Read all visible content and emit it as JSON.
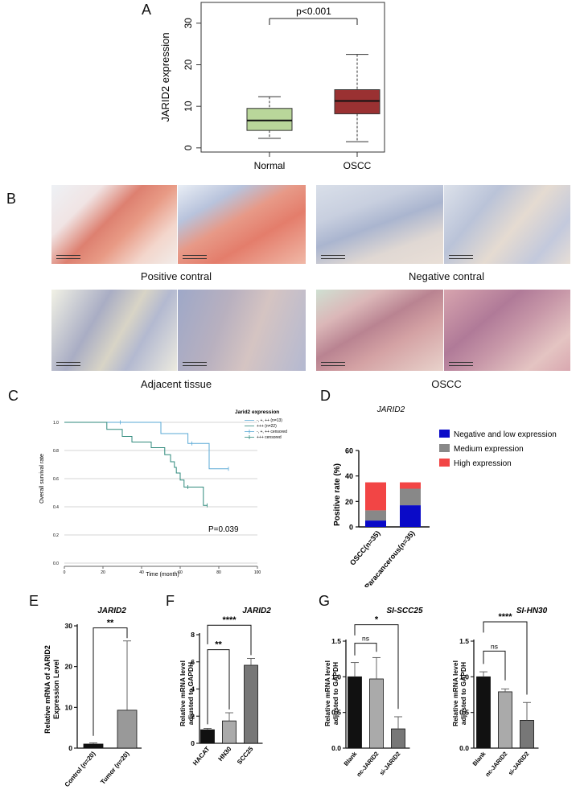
{
  "panel_labels": {
    "A": "A",
    "B": "B",
    "C": "C",
    "D": "D",
    "E": "E",
    "F": "F",
    "G": "G"
  },
  "panel_a": {
    "ylabel": "JARID2 expression",
    "pvalue": "p<0.001",
    "yticks": [
      "0",
      "10",
      "20",
      "30"
    ],
    "groups": [
      {
        "name": "Normal",
        "min": 2.3,
        "q1": 4.2,
        "median": 6.6,
        "q3": 9.5,
        "max": 12.3,
        "color": "#b9d69a"
      },
      {
        "name": "OSCC",
        "min": 1.5,
        "q1": 8.2,
        "median": 11.3,
        "q3": 14.0,
        "max": 22.5,
        "color": "#9a3132"
      }
    ],
    "ylim": [
      -1,
      35
    ]
  },
  "panel_b": {
    "captions": [
      "Positive contral",
      "Negative contral",
      "Adjacent tissue",
      "OSCC"
    ]
  },
  "panel_c": {
    "legend_title": "Jarid2  expression",
    "legend_items": [
      "-, +, ++ (n=13)",
      "+++  (n=22)",
      "-, +, ++ censored",
      "+++ censored"
    ],
    "ylabel": "Overall survival rate",
    "xlabel": "Time (month)",
    "pvalue": "P=0.039",
    "xticks": [
      "0",
      "20",
      "40",
      "60",
      "80",
      "100"
    ],
    "yticks": [
      "0.0",
      "0.2",
      "0.4",
      "0.6",
      "0.8",
      "1.0"
    ],
    "colors": [
      "#5aa9d6",
      "#2f8a7c"
    ]
  },
  "panel_d": {
    "title": "JARID2",
    "ylabel": "Positive rate (%)",
    "yticks": [
      "0",
      "20",
      "40",
      "60"
    ],
    "categories": [
      "OSCC(n=35)",
      "Paracancerous(n=35)"
    ],
    "series": [
      {
        "name": "Negative and low expression",
        "color": "#0a0ac8",
        "values": [
          5,
          17
        ]
      },
      {
        "name": "Medium expression",
        "color": "#888888",
        "values": [
          8,
          13
        ]
      },
      {
        "name": "High expression",
        "color": "#f24545",
        "values": [
          22,
          5
        ]
      }
    ],
    "ylim": [
      0,
      60
    ]
  },
  "panel_e": {
    "title": "JARID2",
    "ylabel": "Relative mRNA of JARID2",
    "ylabel2": "Expression Level",
    "yticks": [
      "0",
      "10",
      "20",
      "30"
    ],
    "categories": [
      "Control (n=20)",
      "Tumor (n=20)"
    ],
    "values": [
      1.0,
      9.3
    ],
    "errors": [
      0.3,
      17.0
    ],
    "colors": [
      "#111111",
      "#999999"
    ],
    "sig": "**",
    "ylim": [
      0,
      30
    ]
  },
  "panel_f": {
    "title": "JARID2",
    "ylabel": "Relative mRNA level",
    "ylabel2": "adjusted to GAPDH",
    "yticks": [
      "0",
      "2",
      "4",
      "6",
      "8"
    ],
    "categories": [
      "HACAT",
      "HN30",
      "SCC25"
    ],
    "values": [
      1.0,
      1.65,
      5.75
    ],
    "errors": [
      0.1,
      0.6,
      0.5
    ],
    "colors": [
      "#111111",
      "#aaaaaa",
      "#777777"
    ],
    "sig": [
      "**",
      "****"
    ],
    "ylim": [
      0,
      8
    ]
  },
  "panel_g1": {
    "title": "SI-SCC25",
    "ylabel": "Relative mRNA level",
    "ylabel2": "adjusted to GAPDH",
    "yticks": [
      "0.0",
      "0.5",
      "1.0",
      "1.5"
    ],
    "categories": [
      "Blank",
      "nc-JARID2",
      "si-JARID2"
    ],
    "values": [
      1.0,
      0.97,
      0.27
    ],
    "errors": [
      0.2,
      0.3,
      0.17
    ],
    "colors": [
      "#111111",
      "#aaaaaa",
      "#777777"
    ],
    "sig": [
      "ns",
      "*"
    ],
    "ylim": [
      0,
      1.5
    ]
  },
  "panel_g2": {
    "title": "SI-HN30",
    "ylabel": "Relative mRNA level",
    "ylabel2": "adjusted to GAPDH",
    "yticks": [
      "0.0",
      "0.5",
      "1.0",
      "1.5"
    ],
    "categories": [
      "Blank",
      "nc-JARID2",
      "si-JARID2"
    ],
    "values": [
      1.0,
      0.79,
      0.39
    ],
    "errors": [
      0.07,
      0.04,
      0.25
    ],
    "colors": [
      "#111111",
      "#aaaaaa",
      "#777777"
    ],
    "sig": [
      "ns",
      "****"
    ],
    "ylim": [
      0,
      1.5
    ]
  },
  "chart_data": [
    {
      "type": "box",
      "title": "",
      "ylabel": "JARID2 expression",
      "categories": [
        "Normal",
        "OSCC"
      ],
      "boxes": [
        {
          "min": 2.3,
          "q1": 4.2,
          "median": 6.6,
          "q3": 9.5,
          "max": 12.3
        },
        {
          "min": 1.5,
          "q1": 8.2,
          "median": 11.3,
          "q3": 14.0,
          "max": 22.5
        }
      ],
      "annotation": "p<0.001",
      "ylim": [
        0,
        30
      ]
    },
    {
      "type": "line",
      "title": "",
      "xlabel": "Time (month)",
      "ylabel": "Overall survival rate",
      "annotation": "P=0.039",
      "series": [
        {
          "name": "-, +, ++ (n=13)",
          "x": [
            0,
            29,
            50,
            64,
            66,
            75,
            85
          ],
          "y": [
            1.0,
            1.0,
            0.92,
            0.85,
            0.85,
            0.67,
            0.67
          ]
        },
        {
          "name": "+++  (n=22)",
          "x": [
            0,
            22,
            30,
            35,
            45,
            52,
            55,
            57,
            58,
            60,
            62,
            64,
            72,
            74
          ],
          "y": [
            1.0,
            0.95,
            0.9,
            0.86,
            0.82,
            0.77,
            0.72,
            0.68,
            0.64,
            0.59,
            0.54,
            0.54,
            0.41,
            0.41
          ]
        }
      ],
      "xlim": [
        0,
        100
      ],
      "ylim": [
        0,
        1.0
      ]
    },
    {
      "type": "bar",
      "title": "JARID2",
      "ylabel": "Positive rate (%)",
      "stacked": true,
      "categories": [
        "OSCC(n=35)",
        "Paracancerous(n=35)"
      ],
      "series": [
        {
          "name": "Negative and low expression",
          "values": [
            5,
            17
          ]
        },
        {
          "name": "Medium expression",
          "values": [
            8,
            13
          ]
        },
        {
          "name": "High expression",
          "values": [
            22,
            5
          ]
        }
      ],
      "ylim": [
        0,
        60
      ]
    },
    {
      "type": "bar",
      "title": "JARID2",
      "ylabel": "Relative mRNA of JARID2 Expression Level",
      "categories": [
        "Control (n=20)",
        "Tumor (n=20)"
      ],
      "values": [
        1.0,
        9.3
      ],
      "ylim": [
        0,
        30
      ]
    },
    {
      "type": "bar",
      "title": "JARID2",
      "ylabel": "Relative mRNA level adjusted to GAPDH",
      "categories": [
        "HACAT",
        "HN30",
        "SCC25"
      ],
      "values": [
        1.0,
        1.65,
        5.75
      ],
      "ylim": [
        0,
        8
      ]
    },
    {
      "type": "bar",
      "title": "SI-SCC25",
      "ylabel": "Relative mRNA level adjusted to GAPDH",
      "categories": [
        "Blank",
        "nc-JARID2",
        "si-JARID2"
      ],
      "values": [
        1.0,
        0.97,
        0.27
      ],
      "ylim": [
        0,
        1.5
      ]
    },
    {
      "type": "bar",
      "title": "SI-HN30",
      "ylabel": "Relative mRNA level adjusted to GAPDH",
      "categories": [
        "Blank",
        "nc-JARID2",
        "si-JARID2"
      ],
      "values": [
        1.0,
        0.79,
        0.39
      ],
      "ylim": [
        0,
        1.5
      ]
    }
  ]
}
